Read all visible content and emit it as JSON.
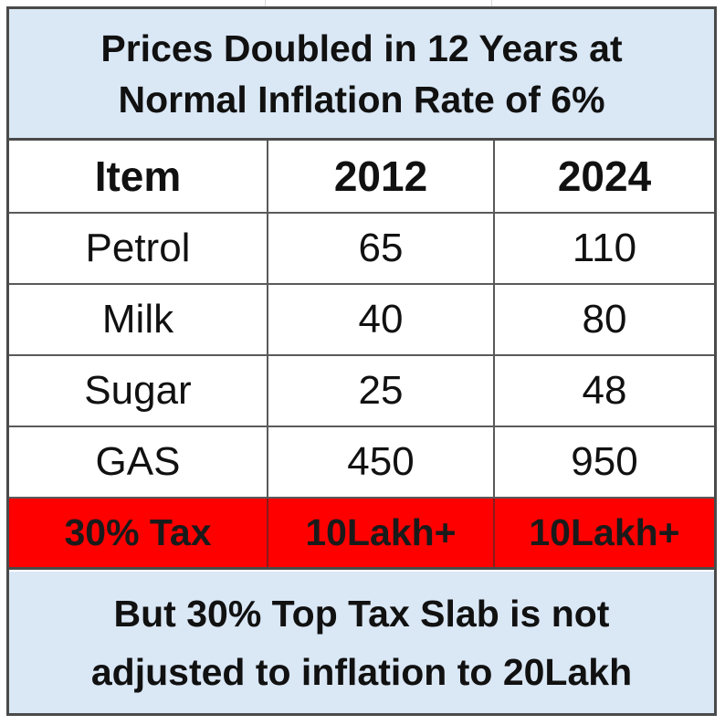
{
  "title": {
    "line1": "Prices Doubled in 12 Years at",
    "line2": "Normal Inflation Rate of 6%"
  },
  "chart_data": {
    "type": "table",
    "columns": [
      "Item",
      "2012",
      "2024"
    ],
    "rows": [
      [
        "Petrol",
        "65",
        "110"
      ],
      [
        "Milk",
        "40",
        "80"
      ],
      [
        "Sugar",
        "25",
        "48"
      ],
      [
        "GAS",
        "450",
        "950"
      ]
    ],
    "highlight_row": [
      "30% Tax",
      "10Lakh+",
      "10Lakh+"
    ]
  },
  "footer": {
    "line1": "But 30% Top Tax Slab is not",
    "line2": "adjusted to inflation to 20Lakh"
  },
  "colors": {
    "header_fill": "#dae7f5",
    "highlight_fill": "#ff0000",
    "border": "#4a4a4a"
  }
}
